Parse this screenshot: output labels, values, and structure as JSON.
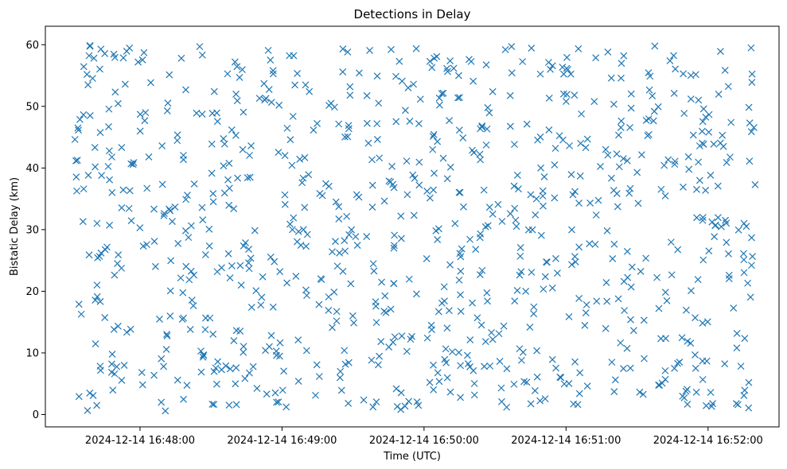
{
  "chart_data": {
    "type": "scatter",
    "title": "Detections in Delay",
    "xlabel": "Time (UTC)",
    "ylabel": "Bistatic Delay (km)",
    "marker": "x",
    "color": "#1f77b4",
    "grid": false,
    "legend": "none",
    "xlim": [
      "2024-12-14 16:47:20",
      "2024-12-14 16:52:30"
    ],
    "ylim": [
      -2,
      63
    ],
    "x_ticks": [
      "2024-12-14 16:48:00",
      "2024-12-14 16:49:00",
      "2024-12-14 16:50:00",
      "2024-12-14 16:51:00",
      "2024-12-14 16:52:00"
    ],
    "y_ticks": [
      0,
      10,
      20,
      30,
      40,
      50,
      60
    ],
    "x_start": "2024-12-14 16:47:32",
    "x_end": "2024-12-14 16:52:20",
    "point_count": 900
  }
}
